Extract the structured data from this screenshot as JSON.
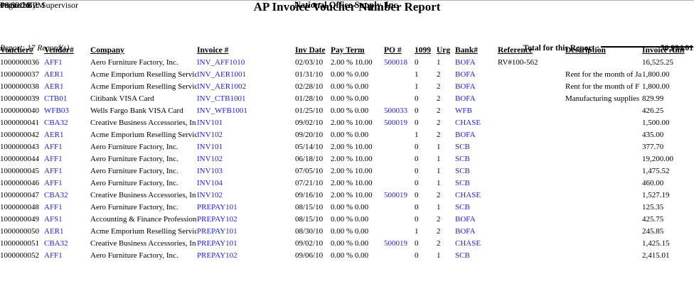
{
  "colors": {
    "link_blue": "#2222cc"
  },
  "header": {
    "date": "10/30/10",
    "time": "06:53:28 PM",
    "company_name": "National Office Supply, Inc.",
    "page_info": "Page 1 of 1",
    "printed_by": "Printed By: Supervisor",
    "report_title": "AP Invoice Voucher Number Report"
  },
  "table": {
    "columns": [
      "Voucher#",
      "Vendor#",
      "Company",
      "Invoice #",
      "Inv Date",
      "Pay Term",
      "PO #",
      "1099",
      "Urg",
      "Bank#",
      "Reference",
      "Description",
      "Invoice Amt"
    ],
    "rows": [
      {
        "voucher": "1000000036",
        "vendor": "AFF1",
        "company": "Aero Furniture Factory, Inc.",
        "invoice": "INV_AFF1010",
        "inv_date": "02/03/10",
        "pay_term": "2.00 % 10.00",
        "po": "500018",
        "t1099": "0",
        "urg": "1",
        "bank": "BOFA",
        "reference": "RV#100-562",
        "description": "",
        "amount": "16,525.25"
      },
      {
        "voucher": "1000000037",
        "vendor": "AER1",
        "company": "Acme Emporium Reselling Servic",
        "invoice": "INV_AER1001",
        "inv_date": "01/31/10",
        "pay_term": "0.00 % 0.00",
        "po": "",
        "t1099": "1",
        "urg": "2",
        "bank": "BOFA",
        "reference": "",
        "description": "Rent for the month of Ja",
        "amount": "1,800.00"
      },
      {
        "voucher": "1000000038",
        "vendor": "AER1",
        "company": "Acme Emporium Reselling Servic",
        "invoice": "INV_AER1002",
        "inv_date": "02/28/10",
        "pay_term": "0.00 % 0.00",
        "po": "",
        "t1099": "1",
        "urg": "2",
        "bank": "BOFA",
        "reference": "",
        "description": "Rent for the month of F",
        "amount": "1,800.00"
      },
      {
        "voucher": "1000000039",
        "vendor": "CTB01",
        "company": "Citibank VISA Card",
        "invoice": "INV_CTB1001",
        "inv_date": "01/28/10",
        "pay_term": "0.00 % 0.00",
        "po": "",
        "t1099": "0",
        "urg": "2",
        "bank": "BOFA",
        "reference": "",
        "description": "Manufacturing supplies",
        "amount": "829.99"
      },
      {
        "voucher": "1000000040",
        "vendor": "WFB03",
        "company": "Wells Fargo Bank VISA Card",
        "invoice": "INV_WFB1001",
        "inv_date": "01/25/10",
        "pay_term": "0.00 % 0.00",
        "po": "500033",
        "t1099": "0",
        "urg": "2",
        "bank": "WFB",
        "reference": "",
        "description": "",
        "amount": "426.25"
      },
      {
        "voucher": "1000000041",
        "vendor": "CBA32",
        "company": "Creative Business Accessories, In",
        "invoice": "INV101",
        "inv_date": "09/02/10",
        "pay_term": "2.00 % 10.00",
        "po": "500019",
        "t1099": "0",
        "urg": "2",
        "bank": "CHASE",
        "reference": "",
        "description": "",
        "amount": "1,500.00"
      },
      {
        "voucher": "1000000042",
        "vendor": "AER1",
        "company": "Acme Emporium Reselling Servic",
        "invoice": "INV102",
        "inv_date": "09/20/10",
        "pay_term": "0.00 % 0.00",
        "po": "",
        "t1099": "1",
        "urg": "2",
        "bank": "BOFA",
        "reference": "",
        "description": "",
        "amount": "435.00"
      },
      {
        "voucher": "1000000043",
        "vendor": "AFF1",
        "company": "Aero Furniture Factory, Inc.",
        "invoice": "INV101",
        "inv_date": "05/14/10",
        "pay_term": "2.00 % 10.00",
        "po": "",
        "t1099": "0",
        "urg": "1",
        "bank": "SCB",
        "reference": "",
        "description": "",
        "amount": "377.70"
      },
      {
        "voucher": "1000000044",
        "vendor": "AFF1",
        "company": "Aero Furniture Factory, Inc.",
        "invoice": "INV102",
        "inv_date": "06/18/10",
        "pay_term": "2.00 % 10.00",
        "po": "",
        "t1099": "0",
        "urg": "1",
        "bank": "SCB",
        "reference": "",
        "description": "",
        "amount": "19,200.00"
      },
      {
        "voucher": "1000000045",
        "vendor": "AFF1",
        "company": "Aero Furniture Factory, Inc.",
        "invoice": "INV103",
        "inv_date": "07/05/10",
        "pay_term": "2.00 % 10.00",
        "po": "",
        "t1099": "0",
        "urg": "1",
        "bank": "SCB",
        "reference": "",
        "description": "",
        "amount": "1,475.52"
      },
      {
        "voucher": "1000000046",
        "vendor": "AFF1",
        "company": "Aero Furniture Factory, Inc.",
        "invoice": "INV104",
        "inv_date": "07/21/10",
        "pay_term": "2.00 % 10.00",
        "po": "",
        "t1099": "0",
        "urg": "1",
        "bank": "SCB",
        "reference": "",
        "description": "",
        "amount": "460.00"
      },
      {
        "voucher": "1000000047",
        "vendor": "CBA32",
        "company": "Creative Business Accessories, In",
        "invoice": "INV102",
        "inv_date": "09/16/10",
        "pay_term": "2.00 % 10.00",
        "po": "500019",
        "t1099": "0",
        "urg": "2",
        "bank": "CHASE",
        "reference": "",
        "description": "",
        "amount": "1,527.19"
      },
      {
        "voucher": "1000000048",
        "vendor": "AFF1",
        "company": "Aero Furniture Factory, Inc.",
        "invoice": "PREPAY101",
        "inv_date": "08/15/10",
        "pay_term": "0.00 % 0.00",
        "po": "",
        "t1099": "0",
        "urg": "1",
        "bank": "SCB",
        "reference": "",
        "description": "",
        "amount": "125.35"
      },
      {
        "voucher": "1000000049",
        "vendor": "AFS1",
        "company": "Accounting & Finance Profession",
        "invoice": "PREPAY102",
        "inv_date": "08/15/10",
        "pay_term": "0.00 % 0.00",
        "po": "",
        "t1099": "0",
        "urg": "2",
        "bank": "BOFA",
        "reference": "",
        "description": "",
        "amount": "425.75"
      },
      {
        "voucher": "1000000050",
        "vendor": "AER1",
        "company": "Acme Emporium Reselling Servic",
        "invoice": "PREPAY101",
        "inv_date": "08/30/10",
        "pay_term": "0.00 % 0.00",
        "po": "",
        "t1099": "1",
        "urg": "2",
        "bank": "BOFA",
        "reference": "",
        "description": "",
        "amount": "245.85"
      },
      {
        "voucher": "1000000051",
        "vendor": "CBA32",
        "company": "Creative Business Accessories, In",
        "invoice": "PREPAY101",
        "inv_date": "09/02/10",
        "pay_term": "0.00 % 0.00",
        "po": "500019",
        "t1099": "0",
        "urg": "2",
        "bank": "CHASE",
        "reference": "",
        "description": "",
        "amount": "1,425.15"
      },
      {
        "voucher": "1000000052",
        "vendor": "AFF1",
        "company": "Aero Furniture Factory, Inc.",
        "invoice": "PREPAY102",
        "inv_date": "09/06/10",
        "pay_term": "0.00 % 0.00",
        "po": "",
        "t1099": "0",
        "urg": "1",
        "bank": "SCB",
        "reference": "",
        "description": "",
        "amount": "2,415.01"
      }
    ]
  },
  "footer": {
    "record_count": "Report: 17 Record(s)",
    "total_label": "Total for this Report :",
    "total_amount": "50,994.01"
  }
}
